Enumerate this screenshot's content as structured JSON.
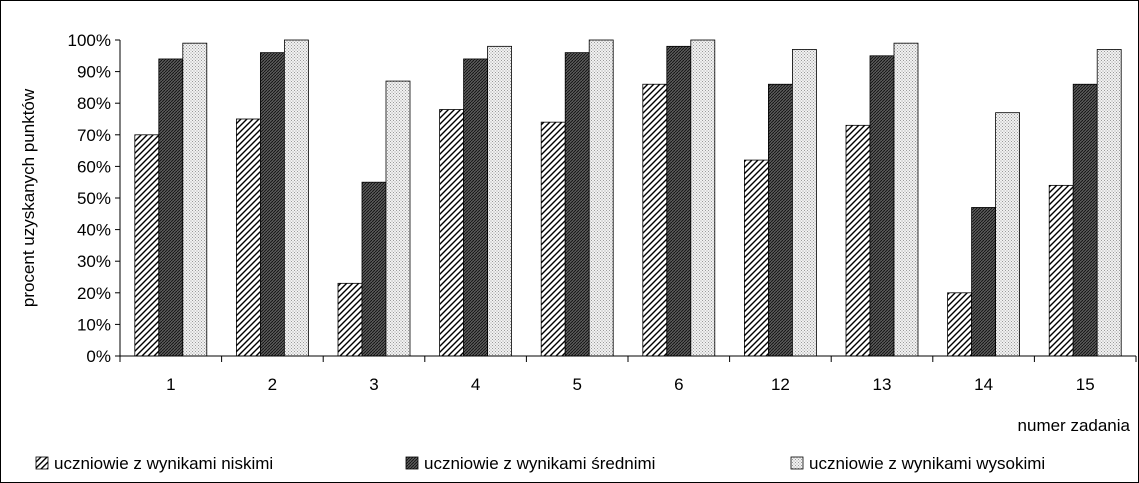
{
  "chart_data": {
    "type": "bar",
    "xlabel": "numer zadania",
    "ylabel": "procent uzyskanych punktów",
    "categories": [
      "1",
      "2",
      "3",
      "4",
      "5",
      "6",
      "12",
      "13",
      "14",
      "15"
    ],
    "ylim": [
      0,
      100
    ],
    "yticks": [
      "0%",
      "10%",
      "20%",
      "30%",
      "40%",
      "50%",
      "60%",
      "70%",
      "80%",
      "90%",
      "100%"
    ],
    "grid": false,
    "legend_position": "bottom",
    "series": [
      {
        "name": "uczniowie z wynikami niskimi",
        "values": [
          70,
          75,
          23,
          78,
          74,
          86,
          62,
          73,
          20,
          54
        ],
        "pattern": "diagonal-hatch"
      },
      {
        "name": "uczniowie z wynikami średnimi",
        "values": [
          94,
          96,
          55,
          94,
          96,
          98,
          86,
          95,
          47,
          86
        ],
        "pattern": "dense-dark-hatch"
      },
      {
        "name": "uczniowie z wynikami wysokimi",
        "values": [
          99,
          100,
          87,
          98,
          100,
          100,
          97,
          99,
          77,
          97
        ],
        "pattern": "light-dots"
      }
    ]
  }
}
